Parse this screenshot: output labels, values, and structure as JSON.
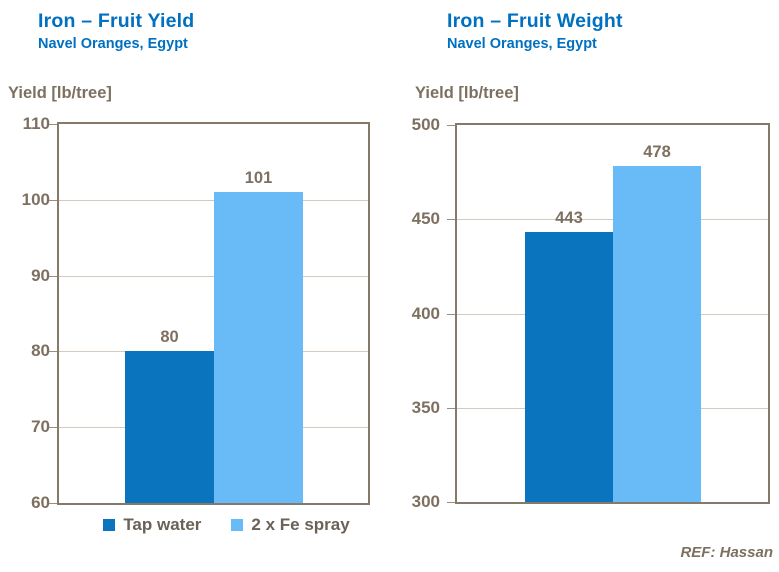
{
  "colors": {
    "page_bg": "#FFFFFF",
    "title_blue": "#0070C0",
    "bar_dark_blue": "#0B74BE",
    "bar_light_blue": "#69BBF7",
    "axis_text": "#7D7060",
    "frame": "#85796A",
    "gridline": "#D2CABE",
    "tick": "#9A8F7F",
    "legend_text": "#6A6258",
    "ref_text": "#7D7060"
  },
  "legend": {
    "items": [
      {
        "label": "Tap water",
        "swatch_color": "#0B74BE"
      },
      {
        "label": "2 x Fe spray",
        "swatch_color": "#69BBF7"
      }
    ]
  },
  "footer": {
    "ref": "REF: Hassan"
  },
  "chart_data": [
    {
      "type": "bar",
      "title": "Iron – Fruit Yield",
      "subtitle": "Navel Oranges, Egypt",
      "ylabel": "Yield [lb/tree]",
      "xlabel": "",
      "categories": [
        "Tap water",
        "2 x Fe spray"
      ],
      "values": [
        80,
        101
      ],
      "data_labels": [
        "80",
        "101"
      ],
      "bar_colors": [
        "#0B74BE",
        "#69BBF7"
      ],
      "ylim": [
        60,
        110
      ],
      "yticks": [
        60,
        70,
        80,
        90,
        100,
        110
      ],
      "grid": true,
      "legend_position": "bottom"
    },
    {
      "type": "bar",
      "title": "Iron – Fruit Weight",
      "subtitle": "Navel Oranges, Egypt",
      "ylabel": "Yield [lb/tree]",
      "xlabel": "",
      "categories": [
        "Tap water",
        "2 x Fe spray"
      ],
      "values": [
        443,
        478
      ],
      "data_labels": [
        "443",
        "478"
      ],
      "bar_colors": [
        "#0B74BE",
        "#69BBF7"
      ],
      "ylim": [
        300,
        500
      ],
      "yticks": [
        300,
        350,
        400,
        450,
        500
      ],
      "grid": true,
      "legend_position": "none"
    }
  ]
}
